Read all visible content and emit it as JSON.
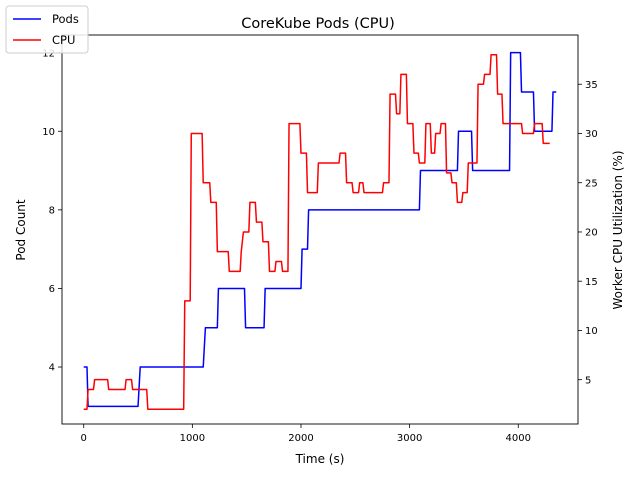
{
  "chart_data": {
    "type": "line",
    "title": "CoreKube Pods (CPU)",
    "xlabel": "Time (s)",
    "ylabel_left": "Pod Count",
    "ylabel_right": "Worker CPU Utilization (%)",
    "xlim": [
      -200,
      4550
    ],
    "ylim_left": [
      2.55,
      12.45
    ],
    "ylim_right": [
      0.5,
      40.0
    ],
    "x_ticks": [
      0,
      1000,
      2000,
      3000,
      4000
    ],
    "y_ticks_left": [
      4,
      6,
      8,
      10,
      12
    ],
    "y_ticks_right": [
      5,
      10,
      15,
      20,
      25,
      30,
      35
    ],
    "grid": false,
    "legend_position": "top-left",
    "legend": [
      "Pods",
      "CPU"
    ],
    "series": [
      {
        "name": "Pods",
        "axis": "left",
        "color": "#0000ff",
        "points": [
          [
            0,
            4
          ],
          [
            30,
            4
          ],
          [
            40,
            3
          ],
          [
            500,
            3
          ],
          [
            520,
            4
          ],
          [
            1100,
            4
          ],
          [
            1120,
            5
          ],
          [
            1230,
            5
          ],
          [
            1240,
            6
          ],
          [
            1480,
            6
          ],
          [
            1490,
            5
          ],
          [
            1660,
            5
          ],
          [
            1670,
            6
          ],
          [
            2000,
            6
          ],
          [
            2010,
            7
          ],
          [
            2060,
            7
          ],
          [
            2070,
            8
          ],
          [
            3090,
            8
          ],
          [
            3100,
            9
          ],
          [
            3440,
            9
          ],
          [
            3450,
            10
          ],
          [
            3570,
            10
          ],
          [
            3580,
            9
          ],
          [
            3920,
            9
          ],
          [
            3930,
            12
          ],
          [
            4020,
            12
          ],
          [
            4030,
            11
          ],
          [
            4140,
            11
          ],
          [
            4150,
            10
          ],
          [
            4310,
            10
          ],
          [
            4320,
            11
          ],
          [
            4350,
            11
          ]
        ]
      },
      {
        "name": "CPU",
        "axis": "right",
        "color": "#ff0000",
        "points": [
          [
            0,
            2
          ],
          [
            30,
            2
          ],
          [
            40,
            4
          ],
          [
            90,
            4
          ],
          [
            100,
            5
          ],
          [
            220,
            5
          ],
          [
            230,
            4
          ],
          [
            380,
            4
          ],
          [
            390,
            5
          ],
          [
            440,
            5
          ],
          [
            450,
            4
          ],
          [
            580,
            4
          ],
          [
            590,
            2
          ],
          [
            920,
            2
          ],
          [
            930,
            13
          ],
          [
            980,
            13
          ],
          [
            990,
            30
          ],
          [
            1090,
            30
          ],
          [
            1100,
            25
          ],
          [
            1160,
            25
          ],
          [
            1170,
            23
          ],
          [
            1220,
            23
          ],
          [
            1230,
            18
          ],
          [
            1330,
            18
          ],
          [
            1340,
            16
          ],
          [
            1440,
            16
          ],
          [
            1450,
            18
          ],
          [
            1470,
            20
          ],
          [
            1520,
            20
          ],
          [
            1530,
            23
          ],
          [
            1580,
            23
          ],
          [
            1590,
            21
          ],
          [
            1640,
            21
          ],
          [
            1650,
            19
          ],
          [
            1700,
            19
          ],
          [
            1710,
            16
          ],
          [
            1760,
            16
          ],
          [
            1770,
            17
          ],
          [
            1820,
            17
          ],
          [
            1830,
            16
          ],
          [
            1880,
            16
          ],
          [
            1890,
            31
          ],
          [
            1990,
            31
          ],
          [
            2000,
            28
          ],
          [
            2050,
            28
          ],
          [
            2060,
            24
          ],
          [
            2150,
            24
          ],
          [
            2160,
            27
          ],
          [
            2350,
            27
          ],
          [
            2360,
            28
          ],
          [
            2410,
            28
          ],
          [
            2420,
            25
          ],
          [
            2470,
            25
          ],
          [
            2480,
            24
          ],
          [
            2530,
            24
          ],
          [
            2540,
            25
          ],
          [
            2570,
            25
          ],
          [
            2580,
            24
          ],
          [
            2750,
            24
          ],
          [
            2760,
            25
          ],
          [
            2810,
            25
          ],
          [
            2820,
            34
          ],
          [
            2870,
            34
          ],
          [
            2880,
            32
          ],
          [
            2910,
            32
          ],
          [
            2920,
            36
          ],
          [
            2970,
            36
          ],
          [
            2980,
            31
          ],
          [
            3030,
            31
          ],
          [
            3040,
            28
          ],
          [
            3080,
            28
          ],
          [
            3090,
            27
          ],
          [
            3140,
            27
          ],
          [
            3150,
            31
          ],
          [
            3190,
            31
          ],
          [
            3200,
            28
          ],
          [
            3230,
            28
          ],
          [
            3240,
            30
          ],
          [
            3280,
            30
          ],
          [
            3290,
            31
          ],
          [
            3330,
            31
          ],
          [
            3340,
            26
          ],
          [
            3380,
            26
          ],
          [
            3390,
            25
          ],
          [
            3430,
            25
          ],
          [
            3440,
            23
          ],
          [
            3480,
            23
          ],
          [
            3490,
            24
          ],
          [
            3530,
            24
          ],
          [
            3540,
            27
          ],
          [
            3620,
            27
          ],
          [
            3630,
            35
          ],
          [
            3680,
            35
          ],
          [
            3690,
            36
          ],
          [
            3740,
            36
          ],
          [
            3750,
            38
          ],
          [
            3800,
            38
          ],
          [
            3810,
            34
          ],
          [
            3850,
            34
          ],
          [
            3860,
            31
          ],
          [
            4030,
            31
          ],
          [
            4040,
            30
          ],
          [
            4140,
            30
          ],
          [
            4150,
            31
          ],
          [
            4220,
            31
          ],
          [
            4230,
            29
          ],
          [
            4290,
            29
          ]
        ]
      }
    ]
  }
}
